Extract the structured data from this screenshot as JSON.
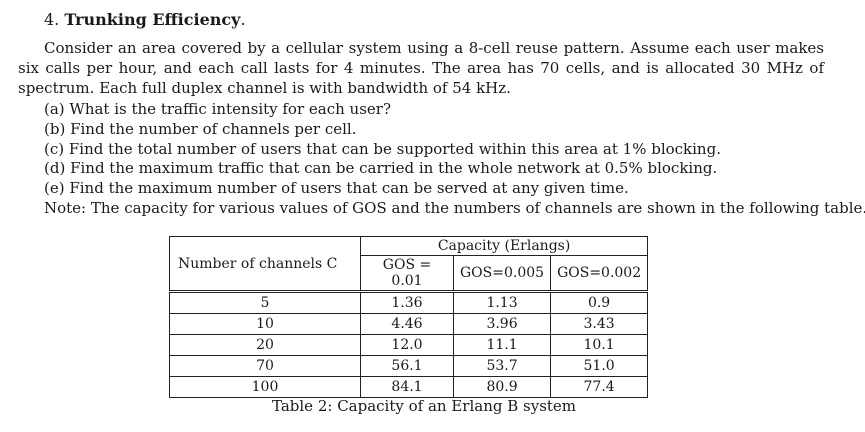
{
  "problem": {
    "number": "4.",
    "title": "Trunking Efficiency",
    "title_suffix": ".",
    "intro": "Consider an area covered by a cellular system using a 8-cell reuse pattern. Assume each user makes six calls per hour, and each call lasts for 4 minutes. The area has 70 cells, and is allocated 30 MHz of spectrum. Each full duplex channel is with bandwidth of 54 kHz.",
    "questions": [
      "(a) What is the traffic intensity for each user?",
      "(b) Find the number of channels per cell.",
      "(c) Find the total number of users that can be supported within this area at 1% blocking.",
      "(d) Find the maximum traffic that can be carried in the whole network at 0.5% blocking.",
      "(e) Find the maximum number of users that can be served at any given time."
    ],
    "note": "Note: The capacity for various values of GOS and the numbers of channels are shown in the following table."
  },
  "table": {
    "col_channels_label": "Number of channels C",
    "capacity_label": "Capacity (Erlangs)",
    "gos_headers": [
      "GOS = 0.01",
      "GOS=0.005",
      "GOS=0.002"
    ],
    "rows": [
      {
        "c": "5",
        "v": [
          "1.36",
          "1.13",
          "0.9"
        ]
      },
      {
        "c": "10",
        "v": [
          "4.46",
          "3.96",
          "3.43"
        ]
      },
      {
        "c": "20",
        "v": [
          "12.0",
          "11.1",
          "10.1"
        ]
      },
      {
        "c": "70",
        "v": [
          "56.1",
          "53.7",
          "51.0"
        ]
      },
      {
        "c": "100",
        "v": [
          "84.1",
          "80.9",
          "77.4"
        ]
      }
    ],
    "caption": "Table 2: Capacity of an Erlang B system"
  }
}
